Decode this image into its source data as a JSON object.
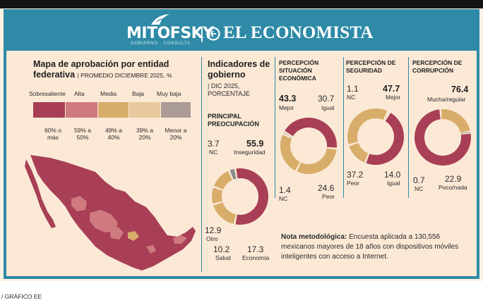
{
  "header": {
    "brand_mitofsky": "MITOFSKY",
    "brand_sub": "GOBIERNO · CONSULTA",
    "brand_divider": "|",
    "brand_economista": "EL ECONOMISTA"
  },
  "map_panel": {
    "title": "Mapa de aprobación por entidad federativa",
    "subtitle": "PROMEDIO DICIEMBRE 2025, %",
    "legend": [
      {
        "label": "Sobresaliente",
        "range": "60% o más",
        "color": "#a83f56"
      },
      {
        "label": "Alta",
        "range": "59% a 50%",
        "color": "#cf7a7f"
      },
      {
        "label": "Media",
        "range": "49% a 40%",
        "color": "#d8ad6a"
      },
      {
        "label": "Baja",
        "range": "39% a 20%",
        "color": "#e7c99e"
      },
      {
        "label": "Muy baja",
        "range": "Menor a 20%",
        "color": "#aa9b96"
      }
    ]
  },
  "indicators": {
    "title": "Indicadores de gobierno",
    "date": "DIC 2025, PORCENTAJE",
    "main_concern_title": "PRINCIPAL PREOCUPACIÓN"
  },
  "labels": {
    "nc": "NC",
    "inseguridad": "Inseguridad",
    "otro": "Otro",
    "salud": "Salud",
    "economia": "Economía",
    "mejor": "Mejor",
    "igual": "Igual",
    "peor": "Peor",
    "mucha": "Mucha/regular",
    "poco": "Poco/nada"
  },
  "nota": {
    "title": "Nota metodológica:",
    "text": "Encuesta aplicada a 130,556 mexicanos mayores de 18 años con dispositivos móviles inteligentes con acceso a Internet."
  },
  "footer": "/ GRÁFICO EE",
  "chart_data": [
    {
      "type": "pie",
      "title": "PRINCIPAL PREOCUPACIÓN",
      "categories": [
        "Inseguridad",
        "Economía",
        "Salud",
        "Otro",
        "NC"
      ],
      "values": [
        55.9,
        17.3,
        10.2,
        12.9,
        3.7
      ],
      "value_labels": [
        "55.9",
        "17.3",
        "10.2",
        "12.9",
        "3.7"
      ],
      "colors": [
        "#a83f56",
        "#d8ad6a",
        "#d8ad6a",
        "#d8ad6a",
        "#8a8a8a"
      ]
    },
    {
      "type": "pie",
      "title": "PERCEPCIÓN SITUACIÓN ECONÓMICA",
      "categories": [
        "Mejor",
        "Igual",
        "Peor",
        "NC"
      ],
      "values": [
        43.3,
        30.7,
        24.6,
        1.4
      ],
      "value_labels": [
        "43.3",
        "30.7",
        "24.6",
        "1.4"
      ],
      "colors": [
        "#a83f56",
        "#d8ad6a",
        "#d8ad6a",
        "#8a8a8a"
      ]
    },
    {
      "type": "pie",
      "title": "PERCEPCIÓN DE SEGURIDAD",
      "categories": [
        "Mejor",
        "Igual",
        "Peor",
        "NC"
      ],
      "values": [
        47.7,
        14.0,
        37.2,
        1.1
      ],
      "value_labels": [
        "47.7",
        "14.0",
        "37.2",
        "1.1"
      ],
      "colors": [
        "#a83f56",
        "#d8ad6a",
        "#d8ad6a",
        "#8a8a8a"
      ]
    },
    {
      "type": "pie",
      "title": "PERCEPCIÓN DE CORRUPCIÓN",
      "categories": [
        "Mucha/regular",
        "Poco/nada",
        "NC"
      ],
      "values": [
        76.4,
        22.9,
        0.7
      ],
      "value_labels": [
        "76.4",
        "22.9",
        "0.7"
      ],
      "colors": [
        "#a83f56",
        "#d8ad6a",
        "#8a8a8a"
      ]
    }
  ]
}
